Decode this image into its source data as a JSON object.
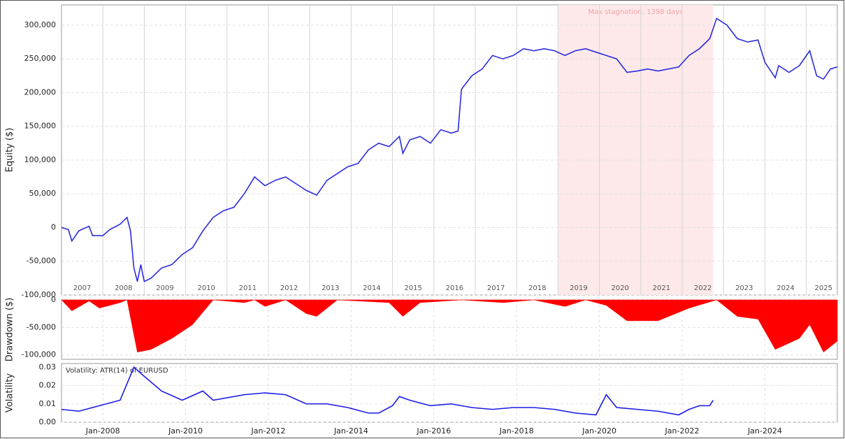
{
  "chart_data": [
    {
      "type": "line",
      "ylabel": "Equity ($)",
      "color": "#2b2bdd",
      "xlim": [
        "2007-01",
        "2025-10"
      ],
      "ylim": [
        -100000,
        330000
      ],
      "yticks": [
        {
          "value": -100000,
          "label": "-100,000"
        },
        {
          "value": -50000,
          "label": "-50,000"
        },
        0,
        {
          "value": 50000,
          "label": "50,000"
        },
        {
          "value": 100000,
          "label": "100,000"
        },
        {
          "value": 150000,
          "label": "150,000"
        },
        {
          "value": 200000,
          "label": "200,000"
        },
        {
          "value": 250000,
          "label": "250,000"
        },
        {
          "value": 300000,
          "label": "300,000"
        }
      ],
      "xgrid": [
        "2008-01",
        "2009-01",
        "2010-01",
        "2011-01",
        "2012-01",
        "2013-01",
        "2014-01",
        "2015-01",
        "2016-01",
        "2017-01",
        "2018-01",
        "2019-01",
        "2020-01",
        "2021-01",
        "2022-01",
        "2023-01",
        "2024-01",
        "2025-01"
      ],
      "year_labels": [
        {
          "value": "2007-07",
          "label": "2007"
        },
        {
          "value": "2008-07",
          "label": "2008"
        },
        {
          "value": "2009-07",
          "label": "2009"
        },
        {
          "value": "2010-07",
          "label": "2010"
        },
        {
          "value": "2011-07",
          "label": "2011"
        },
        {
          "value": "2012-07",
          "label": "2012"
        },
        {
          "value": "2013-07",
          "label": "2013"
        },
        {
          "value": "2014-07",
          "label": "2014"
        },
        {
          "value": "2015-07",
          "label": "2015"
        },
        {
          "value": "2016-07",
          "label": "2016"
        },
        {
          "value": "2017-07",
          "label": "2017"
        },
        {
          "value": "2018-07",
          "label": "2018"
        },
        {
          "value": "2019-07",
          "label": "2019"
        },
        {
          "value": "2020-07",
          "label": "2020"
        },
        {
          "value": "2021-07",
          "label": "2021"
        },
        {
          "value": "2022-07",
          "label": "2022"
        },
        {
          "value": "2023-07",
          "label": "2023"
        },
        {
          "value": "2024-07",
          "label": "2024"
        },
        {
          "value": "2025-06",
          "label": "2025"
        }
      ],
      "annotation": {
        "text": "Max stagnation: 1398 days",
        "start": "2019-01",
        "end": "2022-10",
        "color": "#fde9ea",
        "text_color": "#f2a4a8"
      },
      "x": [
        "2007-01",
        "2007-03",
        "2007-04",
        "2007-06",
        "2007-09",
        "2007-10",
        "2008-01",
        "2008-03",
        "2008-06",
        "2008-08",
        "2008-09",
        "2008-10",
        "2008-11",
        "2008-12",
        "2009-01",
        "2009-03",
        "2009-06",
        "2009-09",
        "2009-12",
        "2010-03",
        "2010-06",
        "2010-09",
        "2010-12",
        "2011-03",
        "2011-06",
        "2011-09",
        "2011-12",
        "2012-03",
        "2012-06",
        "2012-09",
        "2012-12",
        "2013-03",
        "2013-06",
        "2013-09",
        "2013-12",
        "2014-03",
        "2014-06",
        "2014-09",
        "2014-12",
        "2015-03",
        "2015-04",
        "2015-06",
        "2015-09",
        "2015-12",
        "2016-03",
        "2016-06",
        "2016-08",
        "2016-09",
        "2016-12",
        "2017-03",
        "2017-06",
        "2017-09",
        "2017-12",
        "2018-03",
        "2018-06",
        "2018-09",
        "2018-12",
        "2019-03",
        "2019-06",
        "2019-09",
        "2019-12",
        "2020-03",
        "2020-06",
        "2020-09",
        "2020-12",
        "2021-03",
        "2021-06",
        "2021-09",
        "2021-12",
        "2022-03",
        "2022-06",
        "2022-09",
        "2022-11",
        "2023-02",
        "2023-05",
        "2023-08",
        "2023-11",
        "2024-01",
        "2024-04",
        "2024-05",
        "2024-08",
        "2024-11",
        "2025-02",
        "2025-04",
        "2025-06",
        "2025-08",
        "2025-10"
      ],
      "values": [
        0,
        -3000,
        -20000,
        -5000,
        2000,
        -12000,
        -12000,
        -3000,
        5000,
        15000,
        -5000,
        -60000,
        -80000,
        -55000,
        -80000,
        -75000,
        -60000,
        -55000,
        -40000,
        -30000,
        -5000,
        15000,
        25000,
        30000,
        50000,
        75000,
        62000,
        70000,
        75000,
        65000,
        55000,
        48000,
        70000,
        80000,
        90000,
        95000,
        115000,
        125000,
        120000,
        135000,
        110000,
        130000,
        135000,
        125000,
        145000,
        140000,
        143000,
        205000,
        225000,
        235000,
        255000,
        250000,
        255000,
        265000,
        262000,
        265000,
        262000,
        255000,
        262000,
        265000,
        260000,
        255000,
        250000,
        230000,
        232000,
        235000,
        232000,
        235000,
        238000,
        255000,
        265000,
        280000,
        310000,
        300000,
        280000,
        275000,
        278000,
        245000,
        222000,
        240000,
        230000,
        240000,
        262000,
        225000,
        220000,
        235000,
        238000
      ]
    },
    {
      "type": "area",
      "ylabel": "Drawdown ($)",
      "color": "#ff0000",
      "xlim": [
        "2007-01",
        "2025-10"
      ],
      "ylim": [
        -108000,
        0
      ],
      "yticks": [
        {
          "value": -100000,
          "label": "-100,000"
        },
        {
          "value": -50000,
          "label": "-50,000"
        },
        0
      ],
      "x": [
        "2007-01",
        "2007-04",
        "2007-09",
        "2007-12",
        "2008-06",
        "2008-08",
        "2008-11",
        "2009-03",
        "2009-09",
        "2010-03",
        "2010-09",
        "2011-06",
        "2011-09",
        "2011-12",
        "2012-06",
        "2012-12",
        "2013-03",
        "2013-09",
        "2014-12",
        "2015-04",
        "2015-09",
        "2016-09",
        "2017-09",
        "2018-06",
        "2019-03",
        "2019-09",
        "2020-03",
        "2020-09",
        "2021-06",
        "2022-03",
        "2022-11",
        "2023-05",
        "2023-11",
        "2024-04",
        "2024-11",
        "2025-02",
        "2025-06",
        "2025-10"
      ],
      "values": [
        0,
        -20000,
        -2000,
        -15000,
        -5000,
        0,
        -95000,
        -90000,
        -70000,
        -45000,
        0,
        -5000,
        0,
        -12000,
        0,
        -25000,
        -30000,
        0,
        -5000,
        -30000,
        -5000,
        0,
        -5000,
        0,
        -12000,
        0,
        -10000,
        -38000,
        -38000,
        -15000,
        0,
        -30000,
        -35000,
        -90000,
        -70000,
        -45000,
        -95000,
        -75000
      ]
    },
    {
      "type": "line",
      "ylabel": "Volatility",
      "title": "Volatility: ATR(14) of EURUSD",
      "color": "#1a1ae6",
      "xlim": [
        "2007-01",
        "2025-10"
      ],
      "ylim": [
        0,
        0.032
      ],
      "yticks": [
        {
          "value": 0,
          "label": "0.00"
        },
        0.01,
        0.02,
        0.03
      ],
      "xticks": [
        {
          "value": "2008-01",
          "label": "Jan-2008"
        },
        {
          "value": "2010-01",
          "label": "Jan-2010"
        },
        {
          "value": "2012-01",
          "label": "Jan-2012"
        },
        {
          "value": "2014-01",
          "label": "Jan-2014"
        },
        {
          "value": "2016-01",
          "label": "Jan-2016"
        },
        {
          "value": "2018-01",
          "label": "Jan-2018"
        },
        {
          "value": "2020-01",
          "label": "Jan-2020"
        },
        {
          "value": "2022-01",
          "label": "Jan-2022"
        },
        {
          "value": "2024-01",
          "label": "Jan-2024"
        }
      ],
      "x": [
        "2007-01",
        "2007-06",
        "2007-12",
        "2008-06",
        "2008-10",
        "2009-01",
        "2009-06",
        "2009-12",
        "2010-06",
        "2010-09",
        "2011-06",
        "2011-12",
        "2012-06",
        "2012-12",
        "2013-06",
        "2013-12",
        "2014-06",
        "2014-09",
        "2015-01",
        "2015-03",
        "2015-06",
        "2015-12",
        "2016-06",
        "2016-12",
        "2017-06",
        "2017-12",
        "2018-06",
        "2018-12",
        "2019-06",
        "2019-12",
        "2020-03",
        "2020-06",
        "2020-12",
        "2021-06",
        "2021-12",
        "2022-03",
        "2022-06",
        "2022-09",
        "2022-10"
      ],
      "values": [
        0.007,
        0.006,
        0.009,
        0.012,
        0.03,
        0.025,
        0.017,
        0.012,
        0.017,
        0.012,
        0.015,
        0.016,
        0.015,
        0.01,
        0.01,
        0.008,
        0.005,
        0.005,
        0.009,
        0.014,
        0.012,
        0.009,
        0.01,
        0.008,
        0.007,
        0.008,
        0.008,
        0.007,
        0.005,
        0.004,
        0.015,
        0.008,
        0.007,
        0.006,
        0.004,
        0.007,
        0.009,
        0.009,
        0.012
      ]
    }
  ]
}
